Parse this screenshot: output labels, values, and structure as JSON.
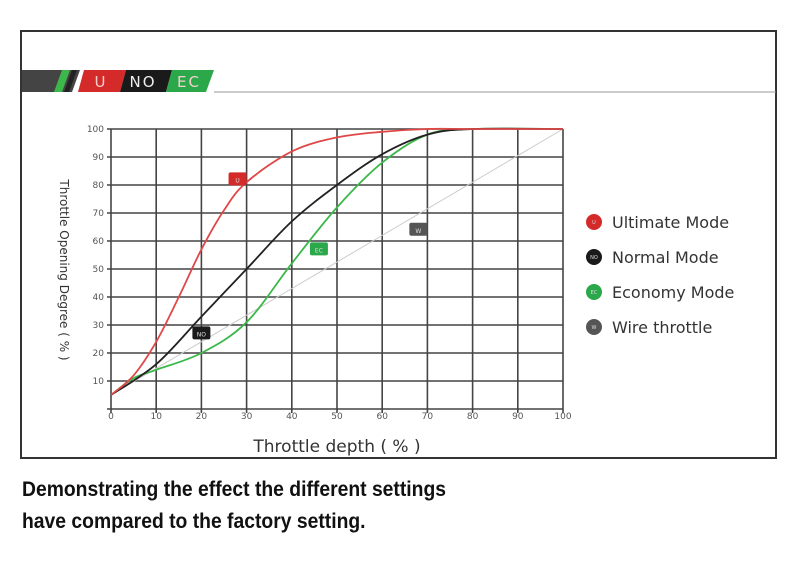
{
  "banner": {
    "labels": [
      "U",
      "NO",
      "EC"
    ],
    "colors": {
      "U": "#d42a2a",
      "NO": "#1a1a1a",
      "EC": "#2aa84a"
    }
  },
  "chart_data": {
    "type": "line",
    "title": "",
    "xlabel": "Throttle depth ( % )",
    "ylabel": "Throttle Opening Degree ( % )",
    "xlim": [
      0,
      100
    ],
    "ylim": [
      0,
      100
    ],
    "xticks": [
      0,
      10,
      20,
      30,
      40,
      50,
      60,
      70,
      80,
      90,
      100
    ],
    "yticks": [
      10,
      20,
      30,
      40,
      50,
      60,
      70,
      80,
      90,
      100
    ],
    "grid": true,
    "legend_position": "right",
    "series": [
      {
        "name": "Ultimate Mode",
        "badge": "U",
        "color": "#e04848",
        "x": [
          0,
          5,
          10,
          15,
          20,
          25,
          30,
          40,
          50,
          60,
          70,
          80,
          100
        ],
        "y": [
          5,
          12,
          24,
          40,
          57,
          71,
          81,
          92,
          97,
          99,
          100,
          100,
          100
        ],
        "marker": [
          28,
          82
        ]
      },
      {
        "name": "Normal Mode",
        "badge": "NO",
        "color": "#222222",
        "x": [
          0,
          10,
          20,
          30,
          40,
          50,
          60,
          70,
          80,
          100
        ],
        "y": [
          5,
          16,
          33,
          50,
          67,
          80,
          91,
          98,
          100,
          100
        ],
        "marker": [
          20,
          27
        ]
      },
      {
        "name": "Economy Mode",
        "badge": "EC",
        "color": "#3cb84a",
        "x": [
          0,
          5,
          10,
          20,
          30,
          40,
          50,
          60,
          70,
          80,
          100
        ],
        "y": [
          5,
          11,
          14,
          20,
          31,
          52,
          72,
          88,
          98,
          100,
          100
        ],
        "marker": [
          46,
          57
        ]
      },
      {
        "name": "Wire throttle",
        "badge": "W",
        "color": "#cccccc",
        "x": [
          0,
          100
        ],
        "y": [
          5,
          100
        ],
        "marker": [
          68,
          64
        ]
      }
    ]
  },
  "caption": {
    "line1": "Demonstrating the effect the different settings",
    "line2": "have compared to the factory setting."
  }
}
